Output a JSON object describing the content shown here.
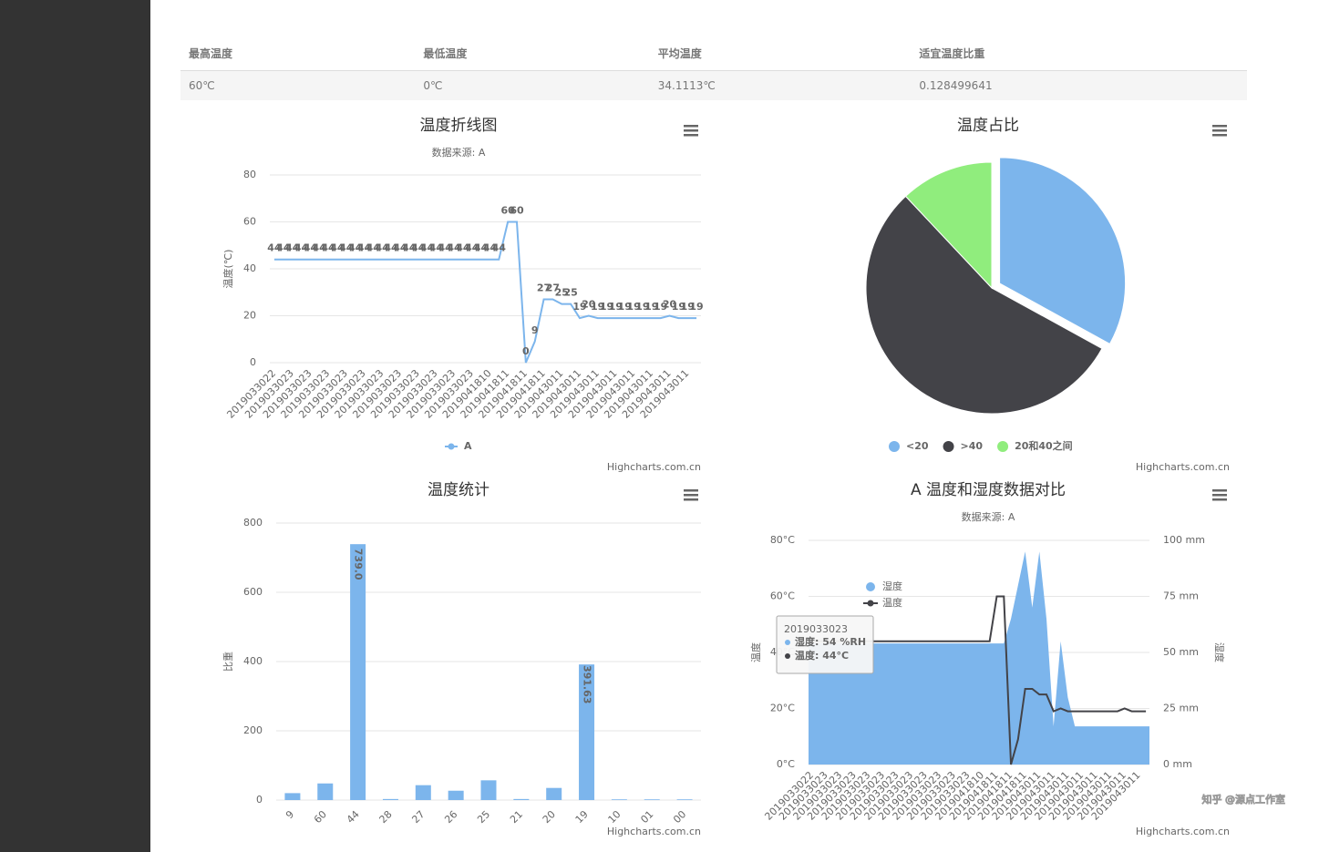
{
  "table": {
    "headers": [
      "最高温度",
      "最低温度",
      "平均温度",
      "适宜温度比重"
    ],
    "rows": [
      [
        "60℃",
        "0℃",
        "34.1113℃",
        "0.128499641"
      ]
    ]
  },
  "chart_data": [
    {
      "type": "line",
      "title": "温度折线图",
      "subtitle": "数据来源: A",
      "y_label": "温度(℃)",
      "categories": [
        "2019033022",
        null,
        "2019033023",
        null,
        "2019033023",
        null,
        "2019033023",
        null,
        "2019033023",
        null,
        "2019033023",
        null,
        "2019033023",
        null,
        "2019033023",
        null,
        "2019033023",
        null,
        "2019033023",
        null,
        "2019033023",
        null,
        "2019033023",
        null,
        "2019041810",
        null,
        "2019041811",
        null,
        "2019041811",
        null,
        "2019041811",
        null,
        "2019043011",
        null,
        "2019043011",
        null,
        "2019043011",
        null,
        "2019043011",
        null,
        "2019043011",
        null,
        "2019043011",
        null,
        "2019043011",
        null,
        "2019043011",
        null
      ],
      "series": [
        {
          "name": "A",
          "color": "#7cb5ec",
          "values": [
            44,
            44,
            44,
            44,
            44,
            44,
            44,
            44,
            44,
            44,
            44,
            44,
            44,
            44,
            44,
            44,
            44,
            44,
            44,
            44,
            44,
            44,
            44,
            44,
            44,
            44,
            60,
            60,
            0,
            9,
            27,
            27,
            25,
            25,
            19,
            20,
            19,
            19,
            19,
            19,
            19,
            19,
            19,
            19,
            20,
            19,
            19,
            19
          ]
        }
      ],
      "ylim": [
        0,
        80
      ],
      "yticks": [
        0,
        20,
        40,
        60,
        80
      ],
      "grid": true,
      "legend": "bottom",
      "credits": "Highcharts.com.cn"
    },
    {
      "type": "pie",
      "title": "温度占比",
      "categories": [
        "<20",
        ">40",
        "20和40之间"
      ],
      "values": [
        33,
        55,
        12
      ],
      "colors": [
        "#7cb5ec",
        "#434348",
        "#90ed7d"
      ],
      "legend": "bottom",
      "credits": "Highcharts.com.cn"
    },
    {
      "type": "bar",
      "title": "温度统计",
      "y_label": "比重",
      "categories": [
        "9",
        "60",
        "44",
        "28",
        "27",
        "26",
        "25",
        "21",
        "20",
        "19",
        "10",
        "01",
        "00"
      ],
      "values": [
        20,
        48,
        739,
        3,
        43,
        27,
        57,
        3,
        35,
        391.63,
        2,
        2,
        2
      ],
      "value_labels": [
        null,
        null,
        "739.0",
        null,
        null,
        null,
        null,
        null,
        null,
        "391.63",
        null,
        null,
        null
      ],
      "color": "#7cb5ec",
      "ylim": [
        0,
        800
      ],
      "yticks": [
        0,
        200,
        400,
        600,
        800
      ],
      "grid": true,
      "credits": "Highcharts.com.cn"
    },
    {
      "type": "combo",
      "title": "A 温度和湿度数据对比",
      "subtitle": "数据来源: A",
      "y_label": "温度",
      "y2_label": "湿度",
      "categories": [
        "2019033022",
        null,
        "2019033023",
        null,
        "2019033023",
        null,
        "2019033023",
        null,
        "2019033023",
        null,
        "2019033023",
        null,
        "2019033023",
        null,
        "2019033023",
        null,
        "2019033023",
        null,
        "2019033023",
        null,
        "2019033023",
        null,
        "2019033023",
        null,
        "2019041810",
        null,
        "2019041811",
        null,
        "2019041811",
        null,
        "2019041811",
        null,
        "2019043011",
        null,
        "2019043011",
        null,
        "2019043011",
        null,
        "2019043011",
        null,
        "2019043011",
        null,
        "2019043011",
        null,
        "2019043011",
        null,
        "2019043011",
        null
      ],
      "series": [
        {
          "name": "湿度",
          "type": "area",
          "axis": "y2",
          "color": "#7cb5ec",
          "values": [
            54,
            54,
            54,
            54,
            54,
            54,
            54,
            54,
            54,
            54,
            54,
            54,
            54,
            54,
            54,
            54,
            54,
            54,
            54,
            54,
            54,
            54,
            54,
            54,
            54,
            54,
            54,
            54,
            65,
            80,
            95,
            70,
            95,
            65,
            17,
            55,
            30,
            17,
            17,
            17,
            17,
            17,
            17,
            17,
            17,
            17,
            17,
            17
          ]
        },
        {
          "name": "温度",
          "type": "line",
          "color": "#434348",
          "values": [
            44,
            44,
            44,
            44,
            44,
            44,
            44,
            44,
            44,
            44,
            44,
            44,
            44,
            44,
            44,
            44,
            44,
            44,
            44,
            44,
            44,
            44,
            44,
            44,
            44,
            44,
            60,
            60,
            0,
            9,
            27,
            27,
            25,
            25,
            19,
            20,
            19,
            19,
            19,
            19,
            19,
            19,
            19,
            19,
            20,
            19,
            19,
            19
          ]
        }
      ],
      "ylim": [
        0,
        80
      ],
      "yticks": [
        {
          "value": 0,
          "label": "0°C"
        },
        {
          "value": 20,
          "label": "20°C"
        },
        {
          "value": 40,
          "label": "40°C"
        },
        {
          "value": 60,
          "label": "60°C"
        },
        {
          "value": 80,
          "label": "80°C"
        }
      ],
      "y2lim": [
        0,
        100
      ],
      "y2ticks": [
        {
          "value": 0,
          "label": "0 mm"
        },
        {
          "value": 25,
          "label": "25 mm"
        },
        {
          "value": 50,
          "label": "50 mm"
        },
        {
          "value": 75,
          "label": "75 mm"
        },
        {
          "value": 100,
          "label": "100 mm"
        }
      ],
      "grid": true,
      "legend": "top-left",
      "tooltip": {
        "title": "2019033023",
        "lines": [
          "湿度: 54 %RH",
          "温度: 44°C"
        ]
      },
      "credits": "Highcharts.com.cn"
    }
  ],
  "watermark": "知乎 @源点工作室"
}
